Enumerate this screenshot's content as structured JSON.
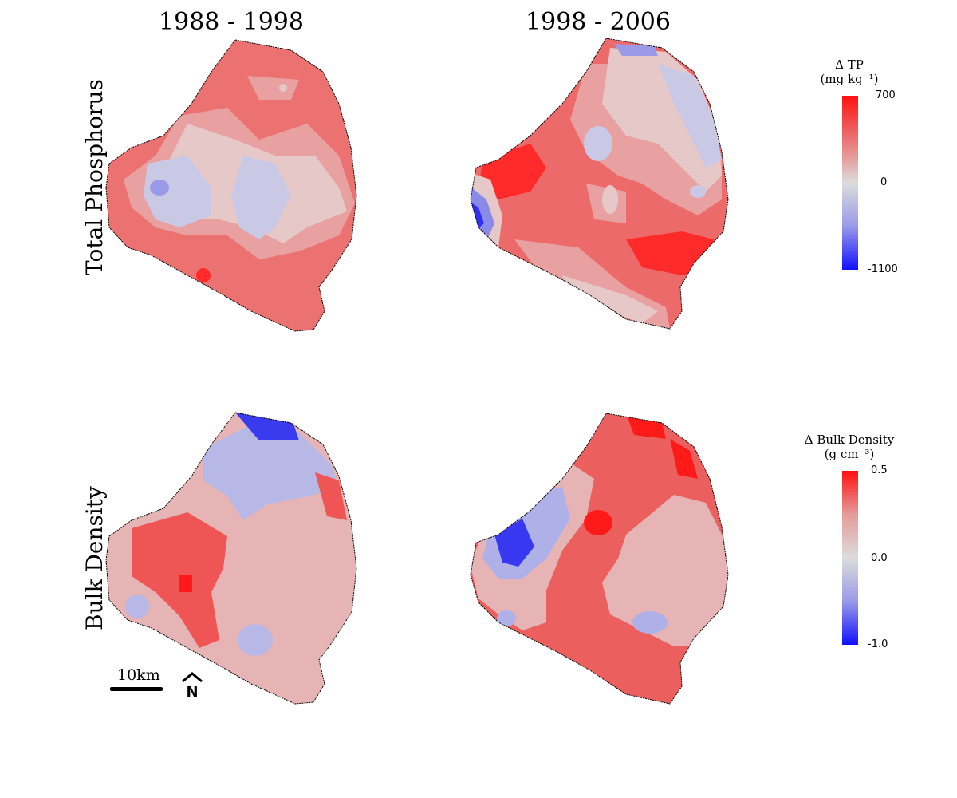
{
  "columns": [
    "1988 - 1998",
    "1998 - 2006"
  ],
  "rows": [
    "Total Phosphorus",
    "Bulk Density"
  ],
  "legends": {
    "tp": {
      "title_line1": "Δ TP",
      "title_line2": "(mg kg⁻¹)",
      "max": "700",
      "mid": "0",
      "min": "-1100"
    },
    "bd": {
      "title_line1": "Δ Bulk Density",
      "title_line2": "(g cm⁻³)",
      "max": "0.5",
      "mid": "0.0",
      "min": "-1.0"
    }
  },
  "scale": {
    "label": "10km"
  },
  "north": {
    "label": "N"
  },
  "colors": {
    "strong_red": "#ff1a1a",
    "mid_red": "#ef5a5a",
    "light_red": "#e99a9a",
    "pale_pink": "#e6c3c3",
    "pale_blue": "#c9c9e6",
    "light_blue": "#a8a8e8",
    "strong_blue": "#2a2aff"
  }
}
